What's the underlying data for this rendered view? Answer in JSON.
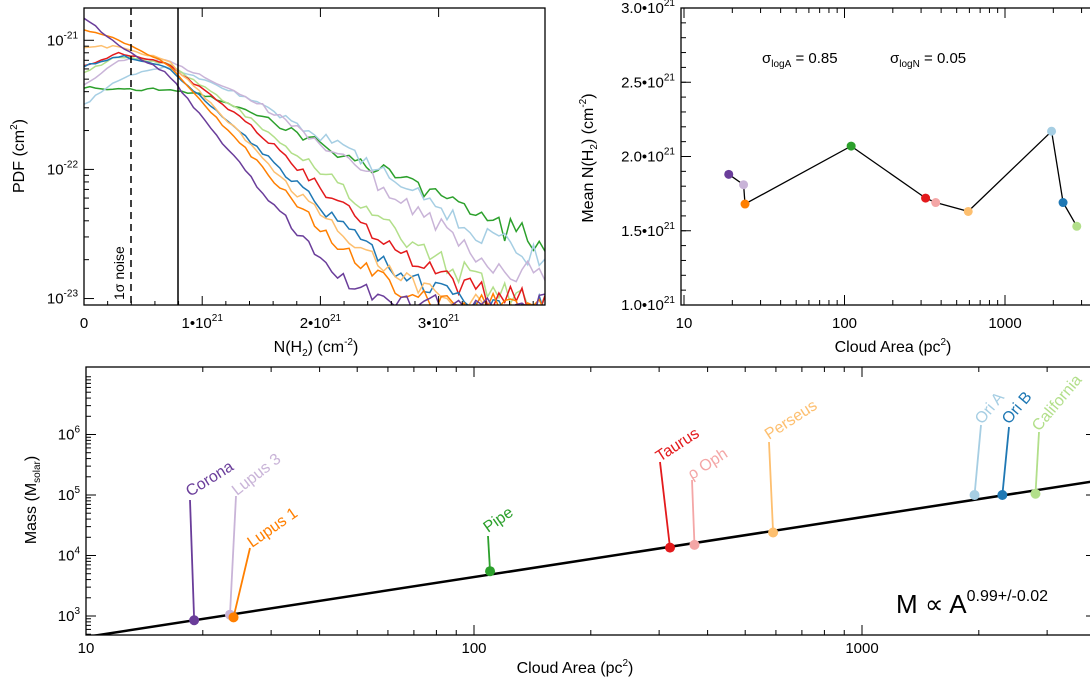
{
  "chart_data": [
    {
      "id": "pdf",
      "type": "line",
      "xlabel": "N(H₂) (cm⁻²)",
      "ylabel": "PDF (cm²)",
      "x_ticks": [
        "0",
        "1•10²¹",
        "2•10²¹",
        "3•10²¹"
      ],
      "y_ticks": [
        "10⁻²¹",
        "10⁻²²",
        "10⁻²³"
      ],
      "xlim": [
        0,
        3.9e+21
      ],
      "ylim_log10": [
        -23.05,
        -20.75
      ],
      "y_scale": "log",
      "annotation": "1σ noise",
      "vlines": [
        {
          "x": 4e+20,
          "style": "dashed"
        },
        {
          "x": 8e+20,
          "style": "solid"
        }
      ],
      "series": [
        {
          "color": "#2ca02c",
          "x": [
            0,
            0.3,
            0.7,
            1.0,
            1.4,
            1.8,
            2.2,
            2.6,
            3.0,
            3.4,
            3.9
          ],
          "y_log10": [
            -21.36,
            -21.38,
            -21.38,
            -21.42,
            -21.55,
            -21.72,
            -21.88,
            -22.05,
            -22.22,
            -22.42,
            -22.58
          ]
        },
        {
          "color": "#a6cee3",
          "x": [
            0,
            0.3,
            0.7,
            1.0,
            1.4,
            1.8,
            2.2,
            2.6,
            3.0,
            3.4,
            3.9
          ],
          "y_log10": [
            -21.5,
            -21.3,
            -21.2,
            -21.3,
            -21.45,
            -21.65,
            -21.85,
            -22.08,
            -22.3,
            -22.52,
            -22.7
          ]
        },
        {
          "color": "#c9b4d8",
          "x": [
            0,
            0.3,
            0.7,
            1.0,
            1.4,
            1.8,
            2.2,
            2.6,
            3.0,
            3.4,
            3.9
          ],
          "y_log10": [
            -21.35,
            -21.15,
            -21.15,
            -21.28,
            -21.45,
            -21.68,
            -21.92,
            -22.18,
            -22.45,
            -22.68,
            -22.85
          ]
        },
        {
          "color": "#b2df8a",
          "x": [
            0,
            0.3,
            0.7,
            1.0,
            1.4,
            1.8,
            2.2,
            2.6,
            3.0,
            3.4,
            3.9
          ],
          "y_log10": [
            -21.25,
            -21.12,
            -21.18,
            -21.35,
            -21.6,
            -21.88,
            -22.15,
            -22.45,
            -22.7,
            -22.9,
            -23.05
          ]
        },
        {
          "color": "#e31a1c",
          "x": [
            0,
            0.3,
            0.7,
            1.0,
            1.4,
            1.8,
            2.2,
            2.6,
            3.0,
            3.4,
            3.9
          ],
          "y_log10": [
            -21.2,
            -21.1,
            -21.18,
            -21.38,
            -21.65,
            -21.98,
            -22.3,
            -22.6,
            -22.82,
            -22.98,
            -23.05
          ]
        },
        {
          "color": "#1f78b4",
          "x": [
            0,
            0.3,
            0.7,
            1.0,
            1.4,
            1.8,
            2.2,
            2.6,
            3.0,
            3.4,
            3.9
          ],
          "y_log10": [
            -21.2,
            -21.12,
            -21.2,
            -21.45,
            -21.78,
            -22.12,
            -22.45,
            -22.75,
            -22.95,
            -23.05,
            -23.05
          ]
        },
        {
          "color": "#fdbf6f",
          "x": [
            0,
            0.3,
            0.7,
            1.0,
            1.4,
            1.8,
            2.2,
            2.6,
            3.0,
            3.4,
            3.9
          ],
          "y_log10": [
            -21.05,
            -21.05,
            -21.15,
            -21.42,
            -21.8,
            -22.18,
            -22.52,
            -22.8,
            -23.0,
            -23.05,
            -23.05
          ]
        },
        {
          "color": "#ff7f00",
          "x": [
            0,
            0.3,
            0.7,
            1.0,
            1.4,
            1.8,
            2.2,
            2.6,
            3.0,
            3.4,
            3.9
          ],
          "y_log10": [
            -20.92,
            -21.0,
            -21.18,
            -21.48,
            -21.88,
            -22.28,
            -22.62,
            -22.9,
            -23.05,
            -23.05,
            -23.05
          ]
        },
        {
          "color": "#6a3d9a",
          "x": [
            0,
            0.3,
            0.7,
            1.0,
            1.4,
            1.8,
            2.2,
            2.6,
            3.0,
            3.4,
            3.9
          ],
          "y_log10": [
            -20.82,
            -21.05,
            -21.25,
            -21.6,
            -22.05,
            -22.48,
            -22.85,
            -23.05,
            -23.05,
            -23.05,
            -23.05
          ]
        }
      ]
    },
    {
      "id": "mean",
      "type": "scatter",
      "xlabel": "Cloud Area (pc²)",
      "ylabel": "Mean N(H₂) (cm⁻²)",
      "x_ticks": [
        "10",
        "100",
        "1000"
      ],
      "y_ticks": [
        "1.0•10²¹",
        "1.5•10²¹",
        "2.0•10²¹",
        "2.5•10²¹",
        "3.0•10²¹"
      ],
      "xlim_log10": [
        1.0,
        3.67
      ],
      "ylim": [
        1e+21,
        3e+21
      ],
      "annotation": {
        "sigma_logA": "σ_logA = 0.85",
        "sigma_logN": "σ_logN = 0.05"
      },
      "points": [
        {
          "area": 19,
          "mean": 1.88e+21,
          "color": "#6a3d9a"
        },
        {
          "area": 23.5,
          "mean": 1.81e+21,
          "color": "#c9b4d8"
        },
        {
          "area": 24,
          "mean": 1.68e+21,
          "color": "#ff7f00"
        },
        {
          "area": 110,
          "mean": 2.07e+21,
          "color": "#2ca02c"
        },
        {
          "area": 320,
          "mean": 1.72e+21,
          "color": "#e31a1c"
        },
        {
          "area": 370,
          "mean": 1.69e+21,
          "color": "#f4a6a6"
        },
        {
          "area": 590,
          "mean": 1.63e+21,
          "color": "#fdbf6f"
        },
        {
          "area": 1950,
          "mean": 2.17e+21,
          "color": "#a6cee3"
        },
        {
          "area": 2300,
          "mean": 1.69e+21,
          "color": "#1f78b4"
        },
        {
          "area": 2800,
          "mean": 1.53e+21,
          "color": "#b2df8a"
        }
      ]
    },
    {
      "id": "mass",
      "type": "scatter",
      "xlabel": "Cloud Area (pc²)",
      "ylabel": "Mass (M_solar)",
      "x_ticks": [
        "10",
        "100",
        "1000"
      ],
      "y_ticks": [
        "10³",
        "10⁴",
        "10⁵",
        "10⁶"
      ],
      "xlim_log10": [
        1.0,
        3.6
      ],
      "ylim_log10": [
        2.5,
        6.5
      ],
      "fit_label": "M ∝ A^0.99+/-0.02",
      "fit_line": {
        "area": [
          10,
          4000
        ],
        "mass": [
          450,
          170000
        ]
      },
      "points": [
        {
          "label": "Corona",
          "area": 19,
          "mass": 850,
          "color": "#6a3d9a"
        },
        {
          "label": "Lupus 3",
          "area": 23.5,
          "mass": 1050,
          "color": "#c9b4d8"
        },
        {
          "label": "Lupus 1",
          "area": 24,
          "mass": 950,
          "color": "#ff7f00"
        },
        {
          "label": "Pipe",
          "area": 110,
          "mass": 5500,
          "color": "#2ca02c"
        },
        {
          "label": "Taurus",
          "area": 320,
          "mass": 13500,
          "color": "#e31a1c"
        },
        {
          "label": "ρ Oph",
          "area": 370,
          "mass": 15000,
          "color": "#f4a6a6"
        },
        {
          "label": "Perseus",
          "area": 590,
          "mass": 24000,
          "color": "#fdbf6f"
        },
        {
          "label": "Ori A",
          "area": 1950,
          "mass": 100000,
          "color": "#a6cee3"
        },
        {
          "label": "Ori B",
          "area": 2300,
          "mass": 100000,
          "color": "#1f78b4"
        },
        {
          "label": "California",
          "area": 2800,
          "mass": 105000,
          "color": "#b2df8a"
        }
      ]
    }
  ]
}
